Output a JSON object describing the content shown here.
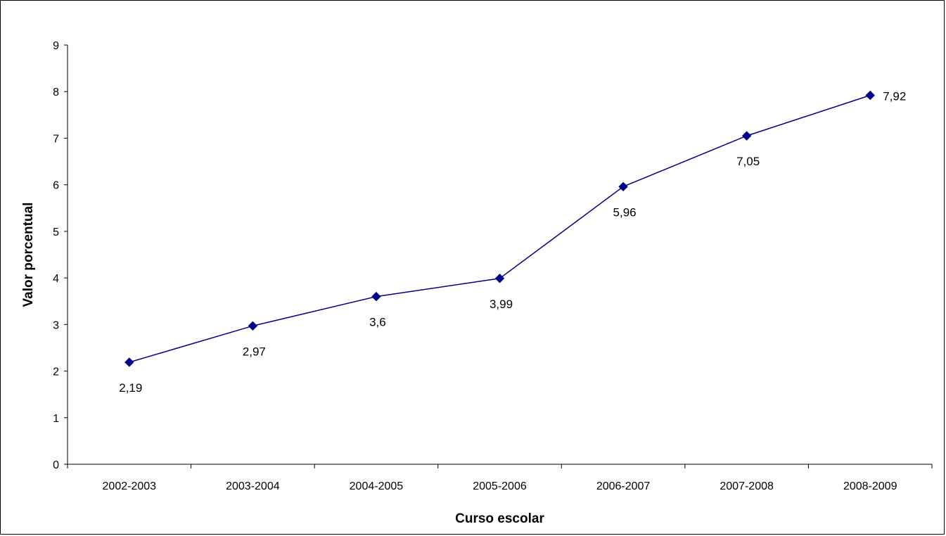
{
  "chart_data": {
    "type": "line",
    "categories": [
      "2002-2003",
      "2003-2004",
      "2004-2005",
      "2005-2006",
      "2006-2007",
      "2007-2008",
      "2008-2009"
    ],
    "series": [
      {
        "values": [
          2.19,
          2.97,
          3.6,
          3.99,
          5.96,
          7.05,
          7.92
        ],
        "labels": [
          "2,19",
          "2,97",
          "3,6",
          "3,99",
          "5,96",
          "7,05",
          "7,92"
        ],
        "color": "#00008B"
      }
    ],
    "xlabel": "Curso escolar",
    "ylabel": "Valor porcentual",
    "ylim": [
      0,
      9
    ],
    "yticks": [
      "0",
      "1",
      "2",
      "3",
      "4",
      "5",
      "6",
      "7",
      "8",
      "9"
    ],
    "grid": false,
    "legend": "none"
  }
}
